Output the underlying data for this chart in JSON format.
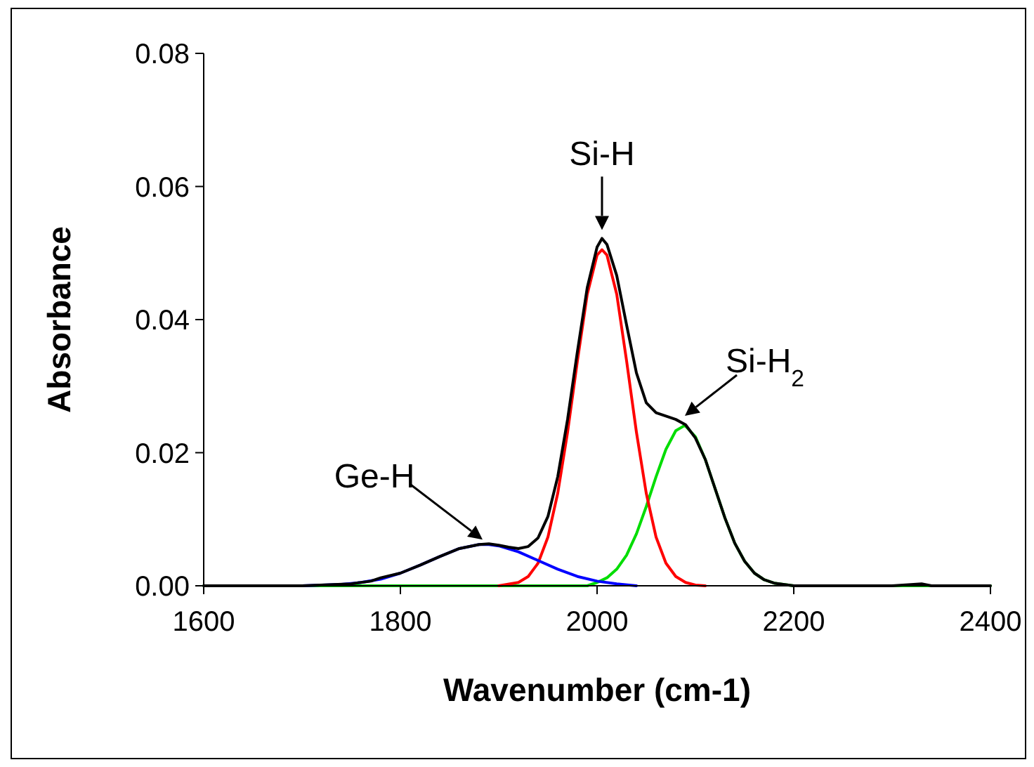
{
  "chart_data": {
    "type": "line",
    "xlabel": "Wavenumber (cm-1)",
    "ylabel": "Absorbance",
    "xlim": [
      1600,
      2400
    ],
    "ylim": [
      0,
      0.08
    ],
    "xticks": [
      1600,
      1800,
      2000,
      2200,
      2400
    ],
    "yticks": [
      {
        "value": 0,
        "label": "0.00"
      },
      {
        "value": 0.02,
        "label": "0.02"
      },
      {
        "value": 0.04,
        "label": "0.04"
      },
      {
        "value": 0.06,
        "label": "0.06"
      },
      {
        "value": 0.08,
        "label": "0.08"
      }
    ],
    "series": [
      {
        "color": "#00dd00",
        "x": [
          1600,
          1990,
          2000,
          2010,
          2020,
          2030,
          2040,
          2050,
          2060,
          2070,
          2080,
          2088,
          2090,
          2100,
          2110,
          2120,
          2130,
          2140,
          2150,
          2160,
          2170,
          2180,
          2200,
          2400
        ],
        "values": [
          0,
          0,
          0.0005,
          0.0012,
          0.0025,
          0.0046,
          0.0078,
          0.0119,
          0.0164,
          0.0205,
          0.0233,
          0.024,
          0.024,
          0.0224,
          0.019,
          0.0146,
          0.0102,
          0.0064,
          0.0037,
          0.0019,
          0.0009,
          0.0004,
          0,
          0
        ]
      },
      {
        "color": "#ff0000",
        "x": [
          1900,
          1920,
          1930,
          1940,
          1950,
          1960,
          1970,
          1980,
          1990,
          2000,
          2005,
          2010,
          2020,
          2030,
          2040,
          2050,
          2060,
          2070,
          2080,
          2090,
          2100,
          2110
        ],
        "values": [
          0,
          0.0005,
          0.0014,
          0.0034,
          0.0073,
          0.0139,
          0.0231,
          0.0338,
          0.0438,
          0.0497,
          0.0505,
          0.0497,
          0.0438,
          0.0338,
          0.0231,
          0.0139,
          0.0073,
          0.0034,
          0.0014,
          0.0005,
          0.0001,
          0
        ]
      },
      {
        "color": "#0000ff",
        "x": [
          1700,
          1720,
          1740,
          1760,
          1780,
          1800,
          1820,
          1840,
          1860,
          1880,
          1890,
          1900,
          1920,
          1940,
          1960,
          1980,
          2000,
          2020,
          2040
        ],
        "values": [
          0,
          0.0001,
          0.0002,
          0.0005,
          0.001,
          0.0019,
          0.0031,
          0.0044,
          0.0056,
          0.0062,
          0.0062,
          0.006,
          0.0051,
          0.0038,
          0.0025,
          0.0014,
          0.0007,
          0.0003,
          0
        ]
      },
      {
        "color": "#000000",
        "x": [
          1600,
          1650,
          1700,
          1750,
          1770,
          1780,
          1800,
          1820,
          1840,
          1860,
          1880,
          1890,
          1900,
          1910,
          1920,
          1930,
          1940,
          1950,
          1960,
          1970,
          1980,
          1990,
          2000,
          2005,
          2010,
          2020,
          2030,
          2040,
          2050,
          2060,
          2070,
          2080,
          2090,
          2100,
          2110,
          2120,
          2130,
          2140,
          2150,
          2160,
          2170,
          2180,
          2200,
          2300,
          2330,
          2340,
          2400
        ],
        "values": [
          0,
          0,
          0,
          0.0003,
          0.0007,
          0.0012,
          0.0019,
          0.0031,
          0.0044,
          0.0056,
          0.0062,
          0.0063,
          0.0061,
          0.0058,
          0.0056,
          0.0059,
          0.0072,
          0.0104,
          0.0164,
          0.025,
          0.0352,
          0.0448,
          0.0509,
          0.0522,
          0.0513,
          0.0466,
          0.0392,
          0.032,
          0.0275,
          0.026,
          0.0255,
          0.025,
          0.0242,
          0.0222,
          0.019,
          0.0146,
          0.0102,
          0.0064,
          0.0037,
          0.0019,
          0.0009,
          0.0004,
          0,
          0,
          0.0003,
          0,
          0
        ]
      }
    ],
    "annotations": [
      {
        "text": "Ge-H",
        "x": 1885,
        "y": 0.0063
      },
      {
        "text": "Si-H",
        "x": 2005,
        "y": 0.0522
      },
      {
        "text": "Si-H$_{2}$",
        "x": 2085,
        "y": 0.0247
      }
    ]
  }
}
